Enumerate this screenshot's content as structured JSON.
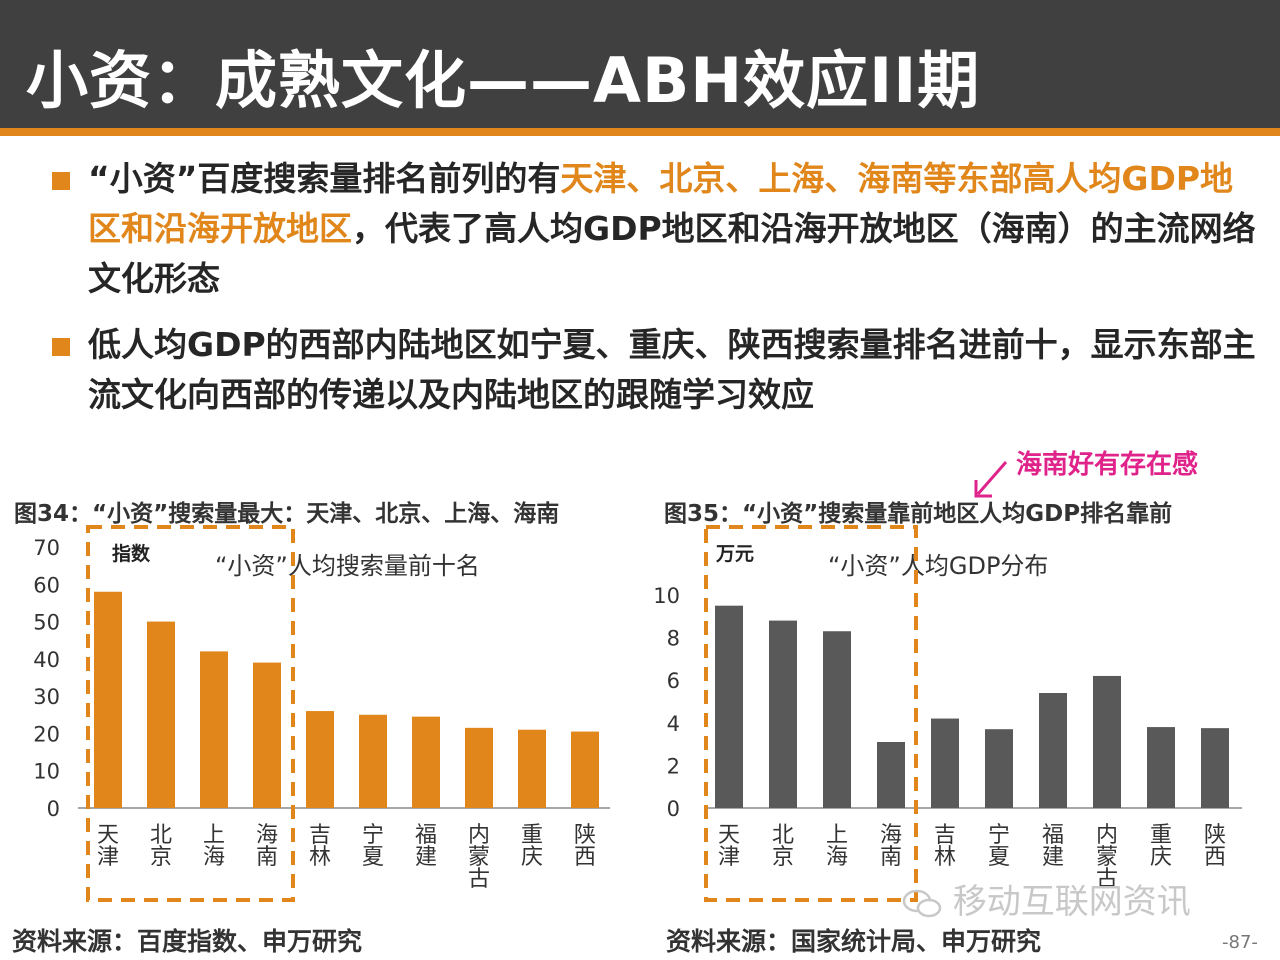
{
  "slide": {
    "title": "小资：成熟文化——ABH效应II期",
    "bullets": [
      {
        "text_a": "“小资”百度搜索量排名前列的有",
        "highlight": "天津、北京、上海、海南等东部高人均GDP地区和沿海开放地区",
        "text_b": "，代表了高人均GDP地区和沿海开放地区（海南）的主流网络文化形态"
      },
      {
        "text_a": "低人均GDP的西部内陆地区如宁夏、重庆、陕西搜索量排名进前十，显示东部主流文化向西部的传递以及内陆地区的跟随学习效应"
      }
    ],
    "annotation": "海南好有存在感",
    "page_number": "-87-",
    "watermark": "移动互联网资讯",
    "colors": {
      "accent": "#e0861a",
      "dark": "#404040",
      "bar_gray": "#595959",
      "annotation": "#e0238a"
    }
  },
  "chart_data": [
    {
      "type": "bar",
      "title": "图34：“小资”搜索量最大：天津、北京、上海、海南",
      "inner_title": "“小资”人均搜索量前十名",
      "ylabel": "指数",
      "categories": [
        "天津",
        "北京",
        "上海",
        "海南",
        "吉林",
        "宁夏",
        "福建",
        "内蒙古",
        "重庆",
        "陕西"
      ],
      "values": [
        58,
        50,
        42,
        39,
        26,
        25,
        24.5,
        21.5,
        21,
        20.5
      ],
      "yticks": [
        0,
        10,
        20,
        30,
        40,
        50,
        60,
        70
      ],
      "ylim": [
        0,
        70
      ],
      "color": "#e0861a",
      "highlight_box": [
        "天津",
        "北京",
        "上海",
        "海南"
      ],
      "source": "资料来源：百度指数、申万研究"
    },
    {
      "type": "bar",
      "title": "图35：“小资”搜索量靠前地区人均GDP排名靠前",
      "inner_title": "“小资”人均GDP分布",
      "ylabel": "万元",
      "categories": [
        "天津",
        "北京",
        "上海",
        "海南",
        "吉林",
        "宁夏",
        "福建",
        "内蒙古",
        "重庆",
        "陕西"
      ],
      "values": [
        9.5,
        8.8,
        8.3,
        3.1,
        4.2,
        3.7,
        5.4,
        6.2,
        3.8,
        3.75
      ],
      "yticks": [
        0,
        2,
        4,
        6,
        8,
        10
      ],
      "ylim": [
        0,
        10.8
      ],
      "color": "#595959",
      "highlight_box": [
        "天津",
        "北京",
        "上海",
        "海南"
      ],
      "source": "资料来源：国家统计局、申万研究"
    }
  ]
}
